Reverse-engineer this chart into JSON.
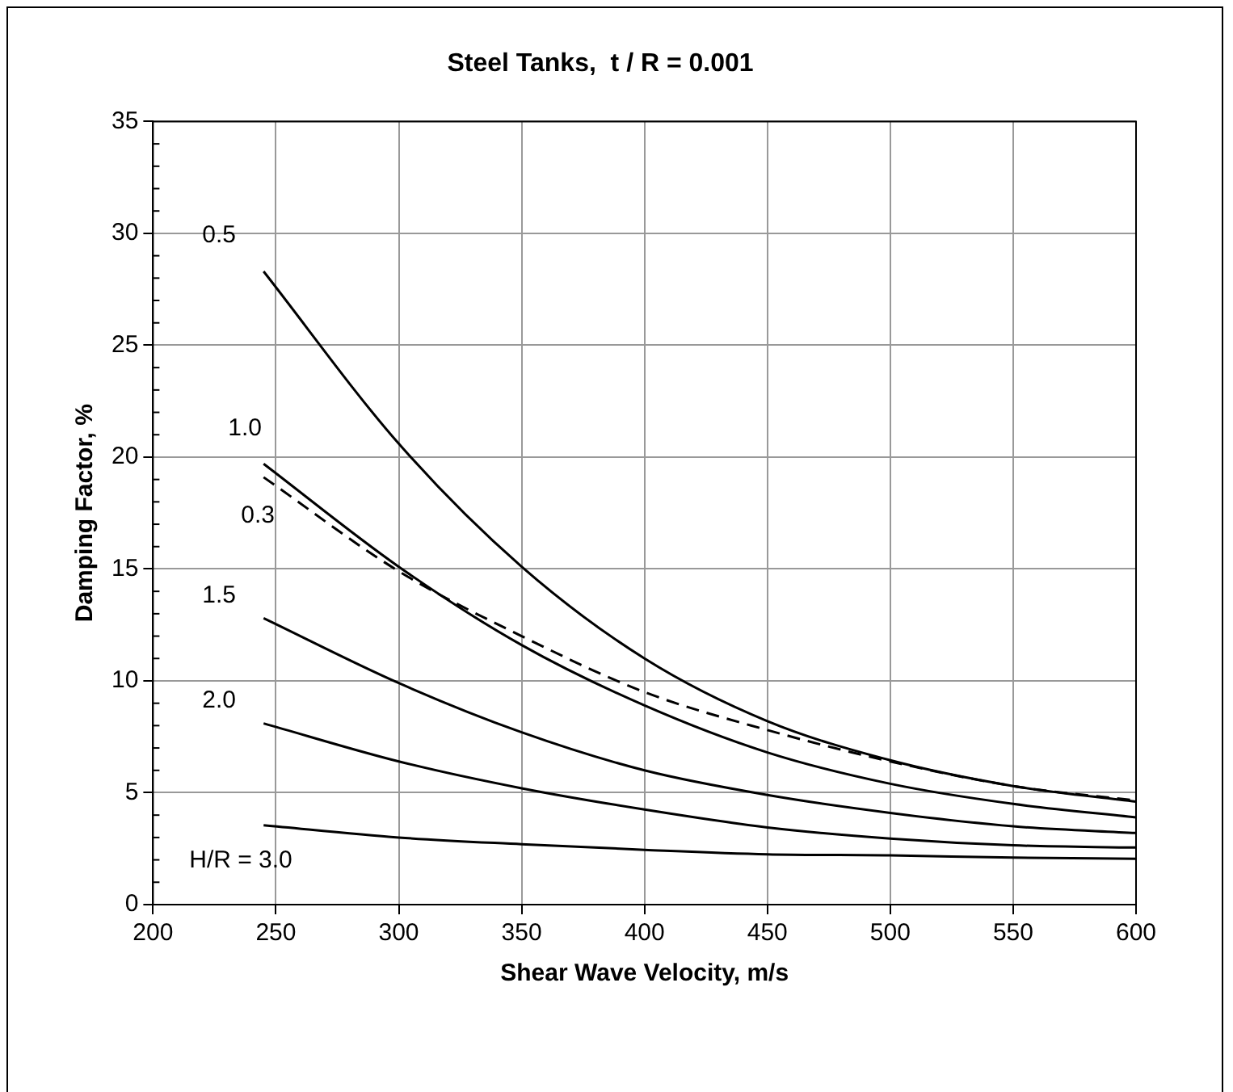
{
  "chart_data": {
    "type": "line",
    "title": "Steel Tanks,  t / R = 0.001",
    "xlabel": "Shear Wave Velocity, m/s",
    "ylabel": "Damping Factor, %",
    "x": [
      245,
      300,
      350,
      400,
      450,
      500,
      550,
      600
    ],
    "series": [
      {
        "name": "0.5",
        "color": "#000000",
        "values": [
          28.3,
          20.6,
          15.1,
          11.0,
          8.2,
          6.45,
          5.3,
          4.6
        ]
      },
      {
        "name": "1.0",
        "color": "#000000",
        "values": [
          19.7,
          15.1,
          11.6,
          8.9,
          6.8,
          5.4,
          4.5,
          3.9
        ]
      },
      {
        "name": "0.3",
        "color": "#000000",
        "line_style": "dashed",
        "values": [
          19.1,
          14.9,
          12.0,
          9.5,
          7.8,
          6.4,
          5.3,
          4.65
        ]
      },
      {
        "name": "1.5",
        "color": "#000000",
        "values": [
          12.8,
          9.9,
          7.7,
          6.0,
          4.9,
          4.1,
          3.5,
          3.2
        ]
      },
      {
        "name": "2.0",
        "color": "#000000",
        "values": [
          8.1,
          6.4,
          5.2,
          4.25,
          3.45,
          2.95,
          2.65,
          2.55
        ]
      },
      {
        "name": "H/R = 3.0",
        "color": "#000000",
        "values": [
          3.55,
          3.0,
          2.7,
          2.45,
          2.25,
          2.2,
          2.1,
          2.05
        ]
      }
    ],
    "xlim": [
      200,
      600
    ],
    "xticks": [
      200,
      250,
      300,
      350,
      400,
      450,
      500,
      550,
      600
    ],
    "ylim": [
      0,
      35
    ],
    "yticks": [
      0,
      5,
      10,
      15,
      20,
      25,
      30,
      35
    ],
    "grid": true,
    "legend": false,
    "marker": "none",
    "line_style": "solid"
  }
}
